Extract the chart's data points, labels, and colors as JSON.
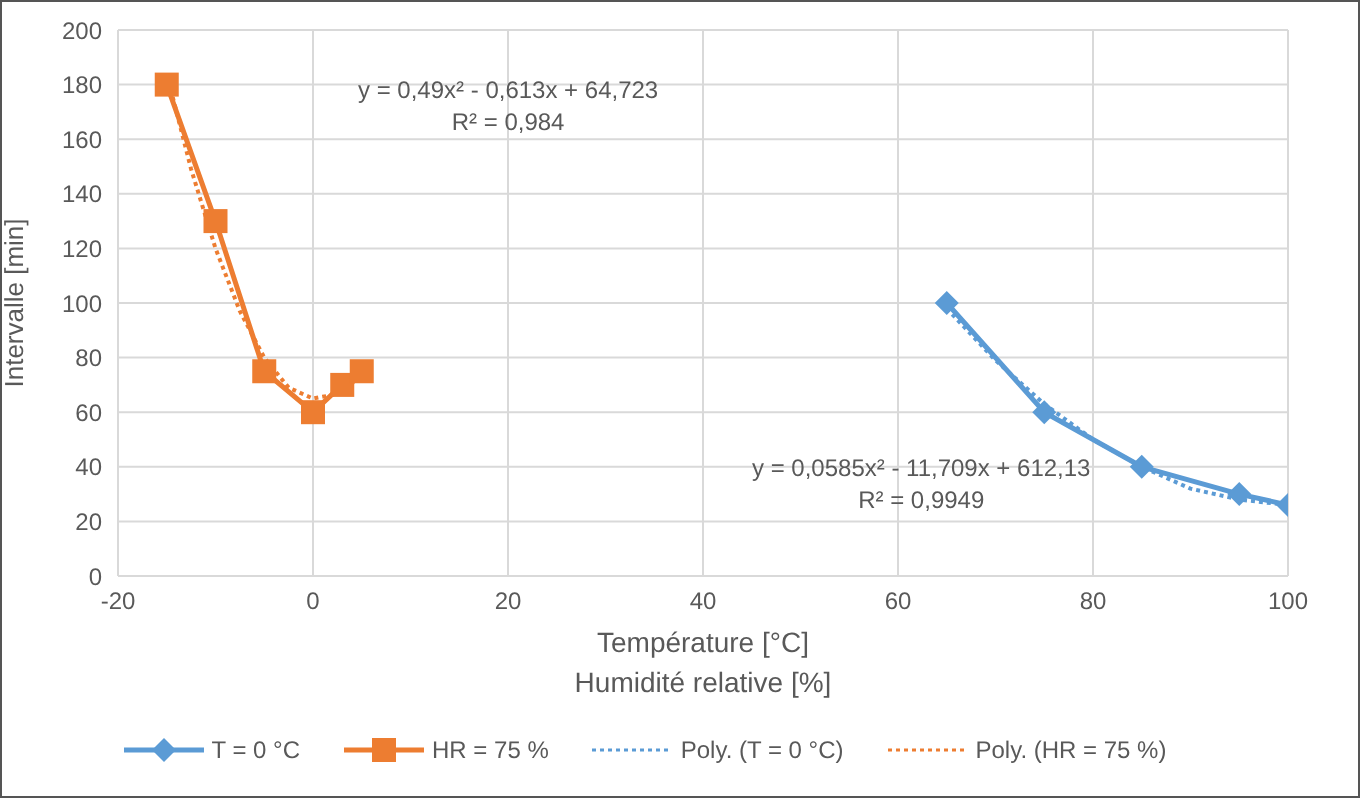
{
  "chart_data": {
    "type": "line",
    "xlabel": "Température [°C]\nHumidité relative [%]",
    "ylabel": "Intervalle [min]",
    "xlim": [
      -20,
      100
    ],
    "xticks": [
      -20,
      0,
      20,
      40,
      60,
      80,
      100
    ],
    "ylim": [
      0,
      200
    ],
    "yticks": [
      0,
      20,
      40,
      60,
      80,
      100,
      120,
      140,
      160,
      180,
      200
    ],
    "grid": true,
    "legend": "bottom",
    "series": [
      {
        "name": "T = 0 °C",
        "color": "#5b9bd5",
        "x": [
          65,
          75,
          85,
          95,
          100
        ],
        "values": [
          100,
          60,
          40,
          30,
          26
        ],
        "marker": "diamond",
        "line_style": "solid"
      },
      {
        "name": "HR = 75 %",
        "color": "#ed7d31",
        "x": [
          -15,
          -10,
          -5,
          0,
          3,
          5
        ],
        "values": [
          180,
          130,
          75,
          60,
          70,
          75
        ],
        "marker": "square",
        "line_style": "solid"
      },
      {
        "name": "Poly. (T = 0 °C)",
        "color": "#5b9bd5",
        "x": [
          65,
          70,
          75,
          80,
          85,
          90,
          95,
          100
        ],
        "values": [
          98,
          79,
          63,
          50,
          40,
          32,
          28,
          26
        ],
        "marker": "none",
        "line_style": "dotted"
      },
      {
        "name": "Poly. (HR = 75 %)",
        "color": "#ed7d31",
        "x": [
          -15,
          -12.5,
          -10,
          -7.5,
          -5,
          -2.5,
          0,
          3,
          5
        ],
        "values": [
          184,
          149,
          120,
          97,
          80,
          69,
          65,
          67,
          74
        ],
        "marker": "none",
        "line_style": "dotted"
      }
    ],
    "annotations": [
      "y = 0,49x² - 0,613x + 64,723\nR² = 0,984",
      "y = 0,0585x² - 11,709x + 612,13\nR² = 0,9949"
    ]
  }
}
